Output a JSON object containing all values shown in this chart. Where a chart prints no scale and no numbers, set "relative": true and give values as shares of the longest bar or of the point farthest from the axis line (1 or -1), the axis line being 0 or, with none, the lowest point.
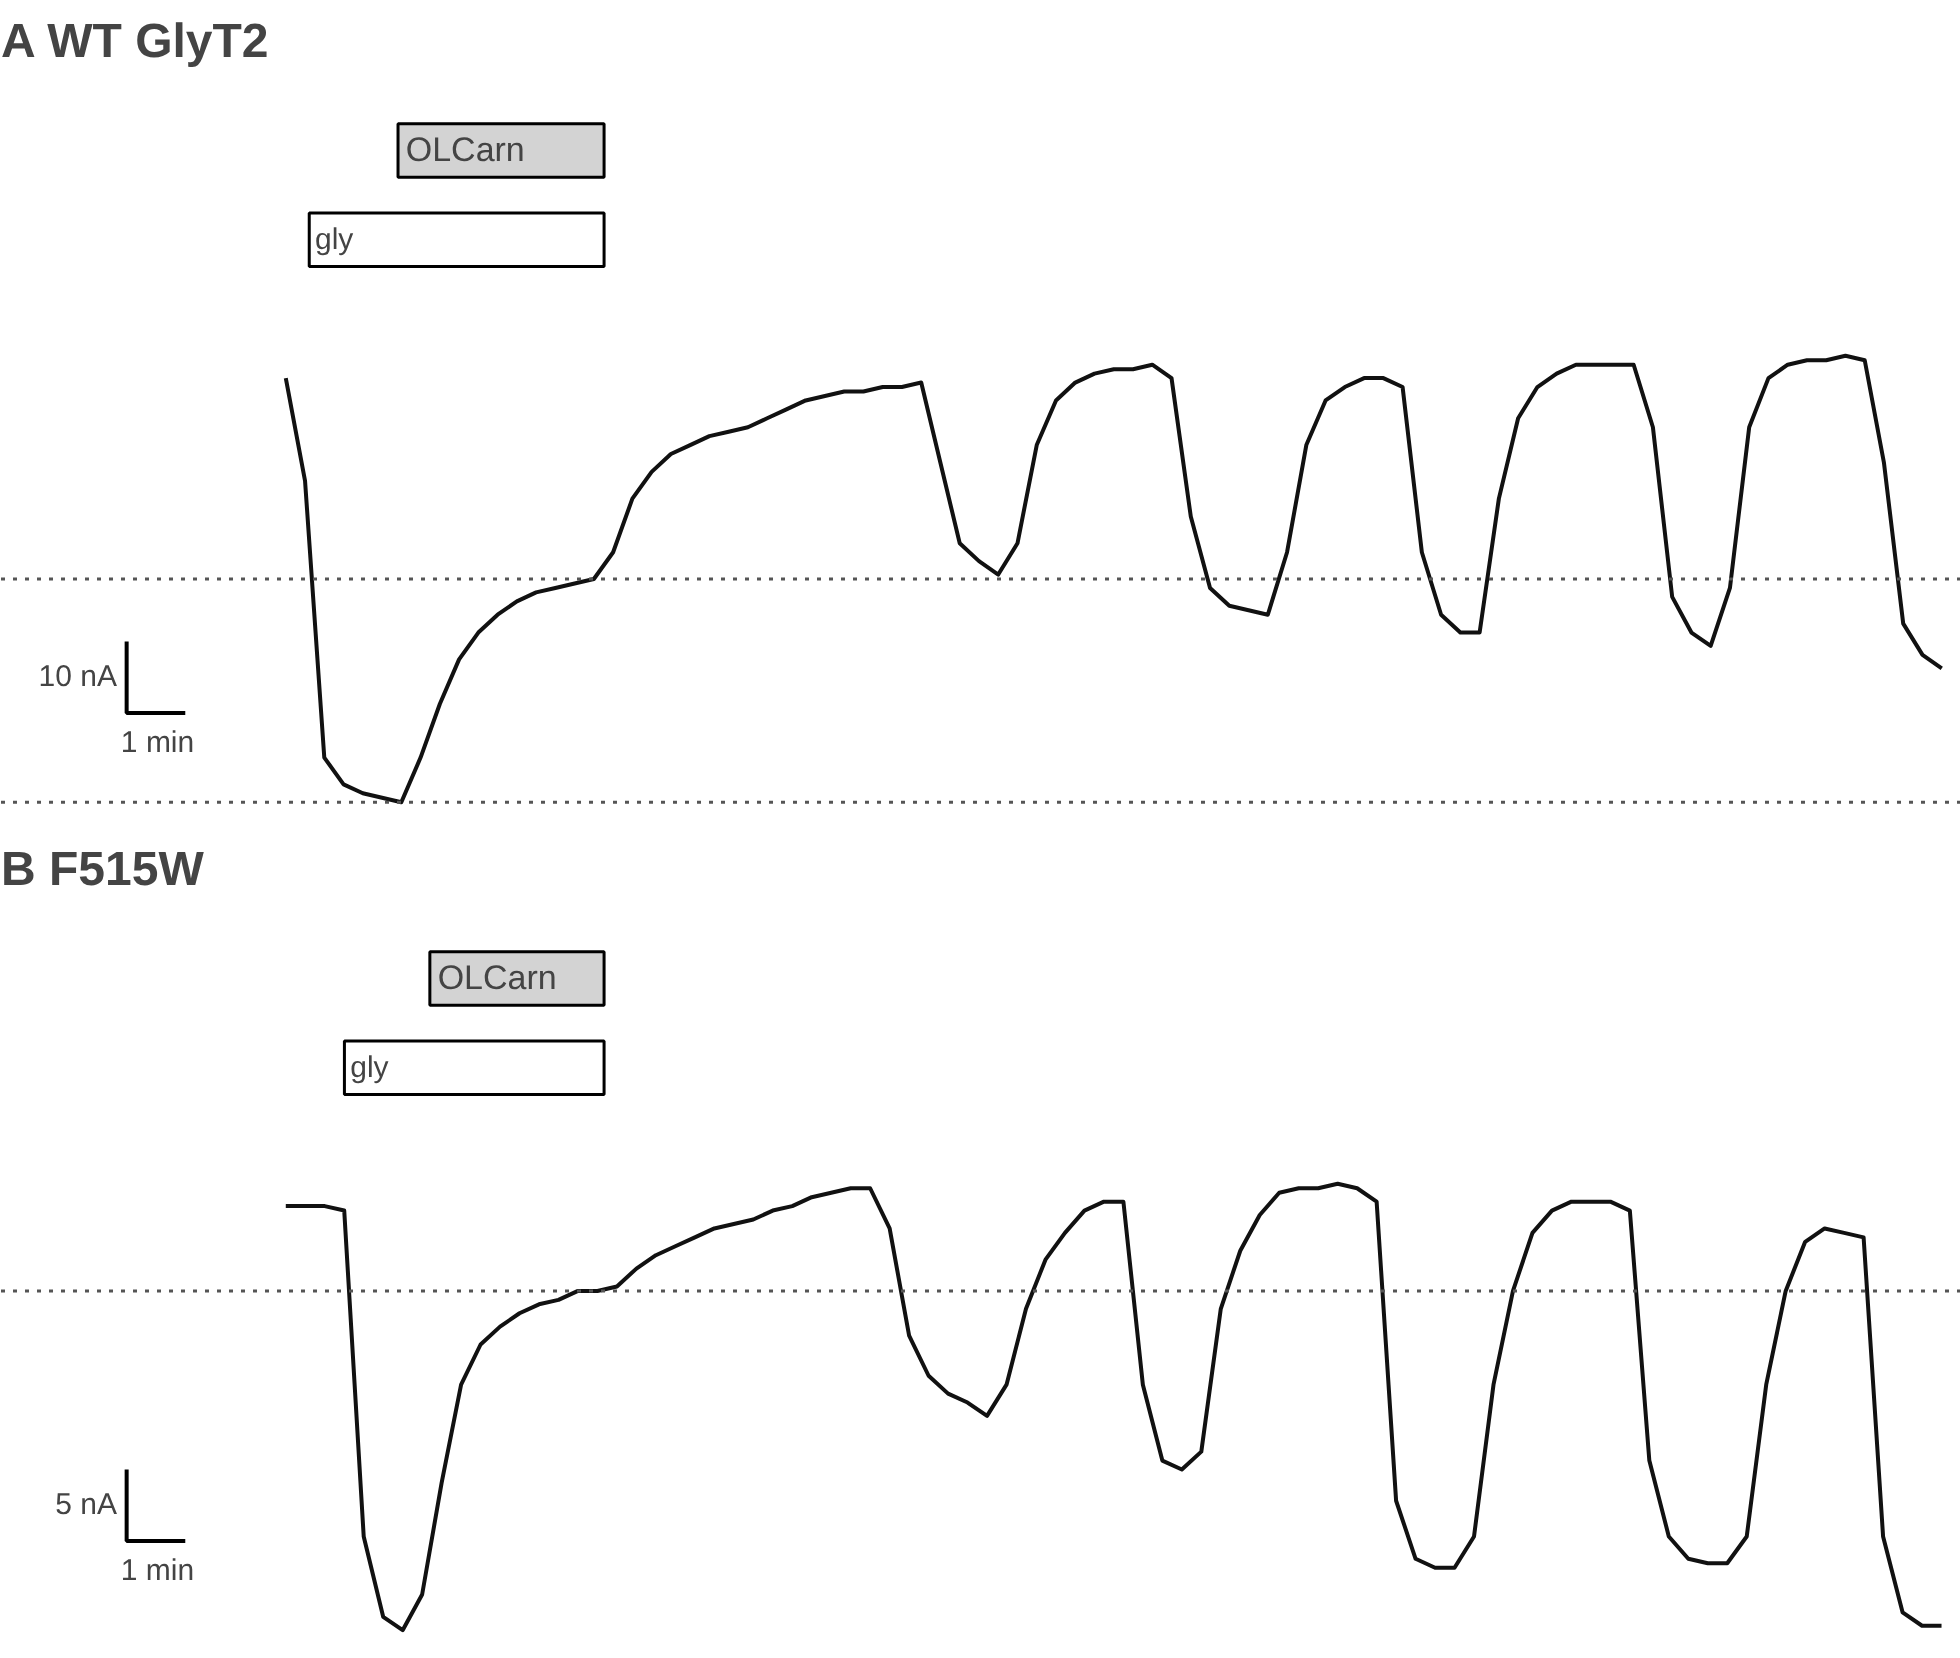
{
  "chart_data": [
    {
      "type": "line",
      "title": "A WT GlyT2",
      "relative": true,
      "color": "#111111",
      "categories": [
        null,
        null,
        null,
        null,
        null,
        null,
        null,
        null,
        null,
        null,
        null,
        null,
        null,
        null,
        null,
        null,
        null,
        null,
        null,
        null,
        null,
        null,
        null,
        null,
        null,
        null,
        null,
        null,
        null,
        null,
        null,
        null,
        null,
        null,
        null,
        null,
        null,
        null,
        null,
        null,
        null,
        null,
        null,
        null,
        null,
        null,
        null,
        null,
        null,
        null,
        null,
        null,
        null,
        null,
        null,
        null,
        null,
        null,
        null,
        null,
        null,
        null,
        null,
        null,
        null,
        null,
        null,
        null,
        null,
        null,
        null,
        null,
        null,
        null,
        null,
        null,
        null,
        null,
        null,
        null,
        null,
        null,
        null,
        null,
        null,
        null,
        null
      ],
      "values": [
        0.95,
        0.72,
        0.1,
        0.04,
        0.02,
        0.01,
        0.0,
        0.1,
        0.22,
        0.32,
        0.38,
        0.42,
        0.45,
        0.47,
        0.48,
        0.49,
        0.5,
        0.56,
        0.68,
        0.74,
        0.78,
        0.8,
        0.82,
        0.83,
        0.84,
        0.86,
        0.88,
        0.9,
        0.91,
        0.92,
        0.92,
        0.93,
        0.93,
        0.94,
        0.76,
        0.58,
        0.54,
        0.51,
        0.58,
        0.8,
        0.9,
        0.94,
        0.96,
        0.97,
        0.97,
        0.98,
        0.95,
        0.64,
        0.48,
        0.44,
        0.43,
        0.42,
        0.56,
        0.8,
        0.9,
        0.93,
        0.95,
        0.95,
        0.93,
        0.56,
        0.42,
        0.38,
        0.38,
        0.68,
        0.86,
        0.93,
        0.96,
        0.98,
        0.98,
        0.98,
        0.98,
        0.84,
        0.46,
        0.38,
        0.35,
        0.48,
        0.84,
        0.95,
        0.98,
        0.99,
        0.99,
        1.0,
        0.99,
        0.76,
        0.4,
        0.33,
        0.3
      ],
      "ref_lines": [
        {
          "axis": "y",
          "value": 0.5,
          "line_style": "dotted",
          "color": "#555555"
        },
        {
          "axis": "y",
          "value": 0.0,
          "line_style": "dotted",
          "color": "#555555"
        }
      ],
      "annotations": [
        "gly",
        "OLCarn",
        "10 nA",
        "1 min"
      ],
      "grid": false,
      "tick_labels": false
    },
    {
      "type": "line",
      "title": "B F515W",
      "relative": true,
      "color": "#111111",
      "categories": [
        null,
        null,
        null,
        null,
        null,
        null,
        null,
        null,
        null,
        null,
        null,
        null,
        null,
        null,
        null,
        null,
        null,
        null,
        null,
        null,
        null,
        null,
        null,
        null,
        null,
        null,
        null,
        null,
        null,
        null,
        null,
        null,
        null,
        null,
        null,
        null,
        null,
        null,
        null,
        null,
        null,
        null,
        null,
        null,
        null,
        null,
        null,
        null,
        null,
        null,
        null,
        null,
        null,
        null,
        null,
        null,
        null,
        null,
        null,
        null,
        null,
        null,
        null,
        null,
        null,
        null,
        null,
        null,
        null,
        null,
        null,
        null,
        null,
        null,
        null,
        null,
        null,
        null,
        null,
        null,
        null,
        null,
        null,
        null,
        null,
        null
      ],
      "values": [
        0.95,
        0.95,
        0.95,
        0.94,
        0.21,
        0.03,
        0.0,
        0.08,
        0.33,
        0.55,
        0.64,
        0.68,
        0.71,
        0.73,
        0.74,
        0.76,
        0.76,
        0.77,
        0.81,
        0.84,
        0.86,
        0.88,
        0.9,
        0.91,
        0.92,
        0.94,
        0.95,
        0.97,
        0.98,
        0.99,
        0.99,
        0.9,
        0.66,
        0.57,
        0.53,
        0.51,
        0.48,
        0.55,
        0.72,
        0.83,
        0.89,
        0.94,
        0.96,
        0.96,
        0.55,
        0.38,
        0.36,
        0.4,
        0.72,
        0.85,
        0.93,
        0.98,
        0.99,
        0.99,
        1.0,
        0.99,
        0.96,
        0.29,
        0.16,
        0.14,
        0.14,
        0.21,
        0.55,
        0.76,
        0.89,
        0.94,
        0.96,
        0.96,
        0.96,
        0.94,
        0.38,
        0.21,
        0.16,
        0.15,
        0.15,
        0.21,
        0.55,
        0.76,
        0.87,
        0.9,
        0.89,
        0.88,
        0.21,
        0.04,
        0.01,
        0.01
      ],
      "ref_lines": [
        {
          "axis": "y",
          "value": 0.76,
          "line_style": "dotted",
          "color": "#555555"
        }
      ],
      "annotations": [
        "gly",
        "OLCarn",
        "5 nA",
        "1 min"
      ],
      "grid": false,
      "tick_labels": false
    }
  ]
}
